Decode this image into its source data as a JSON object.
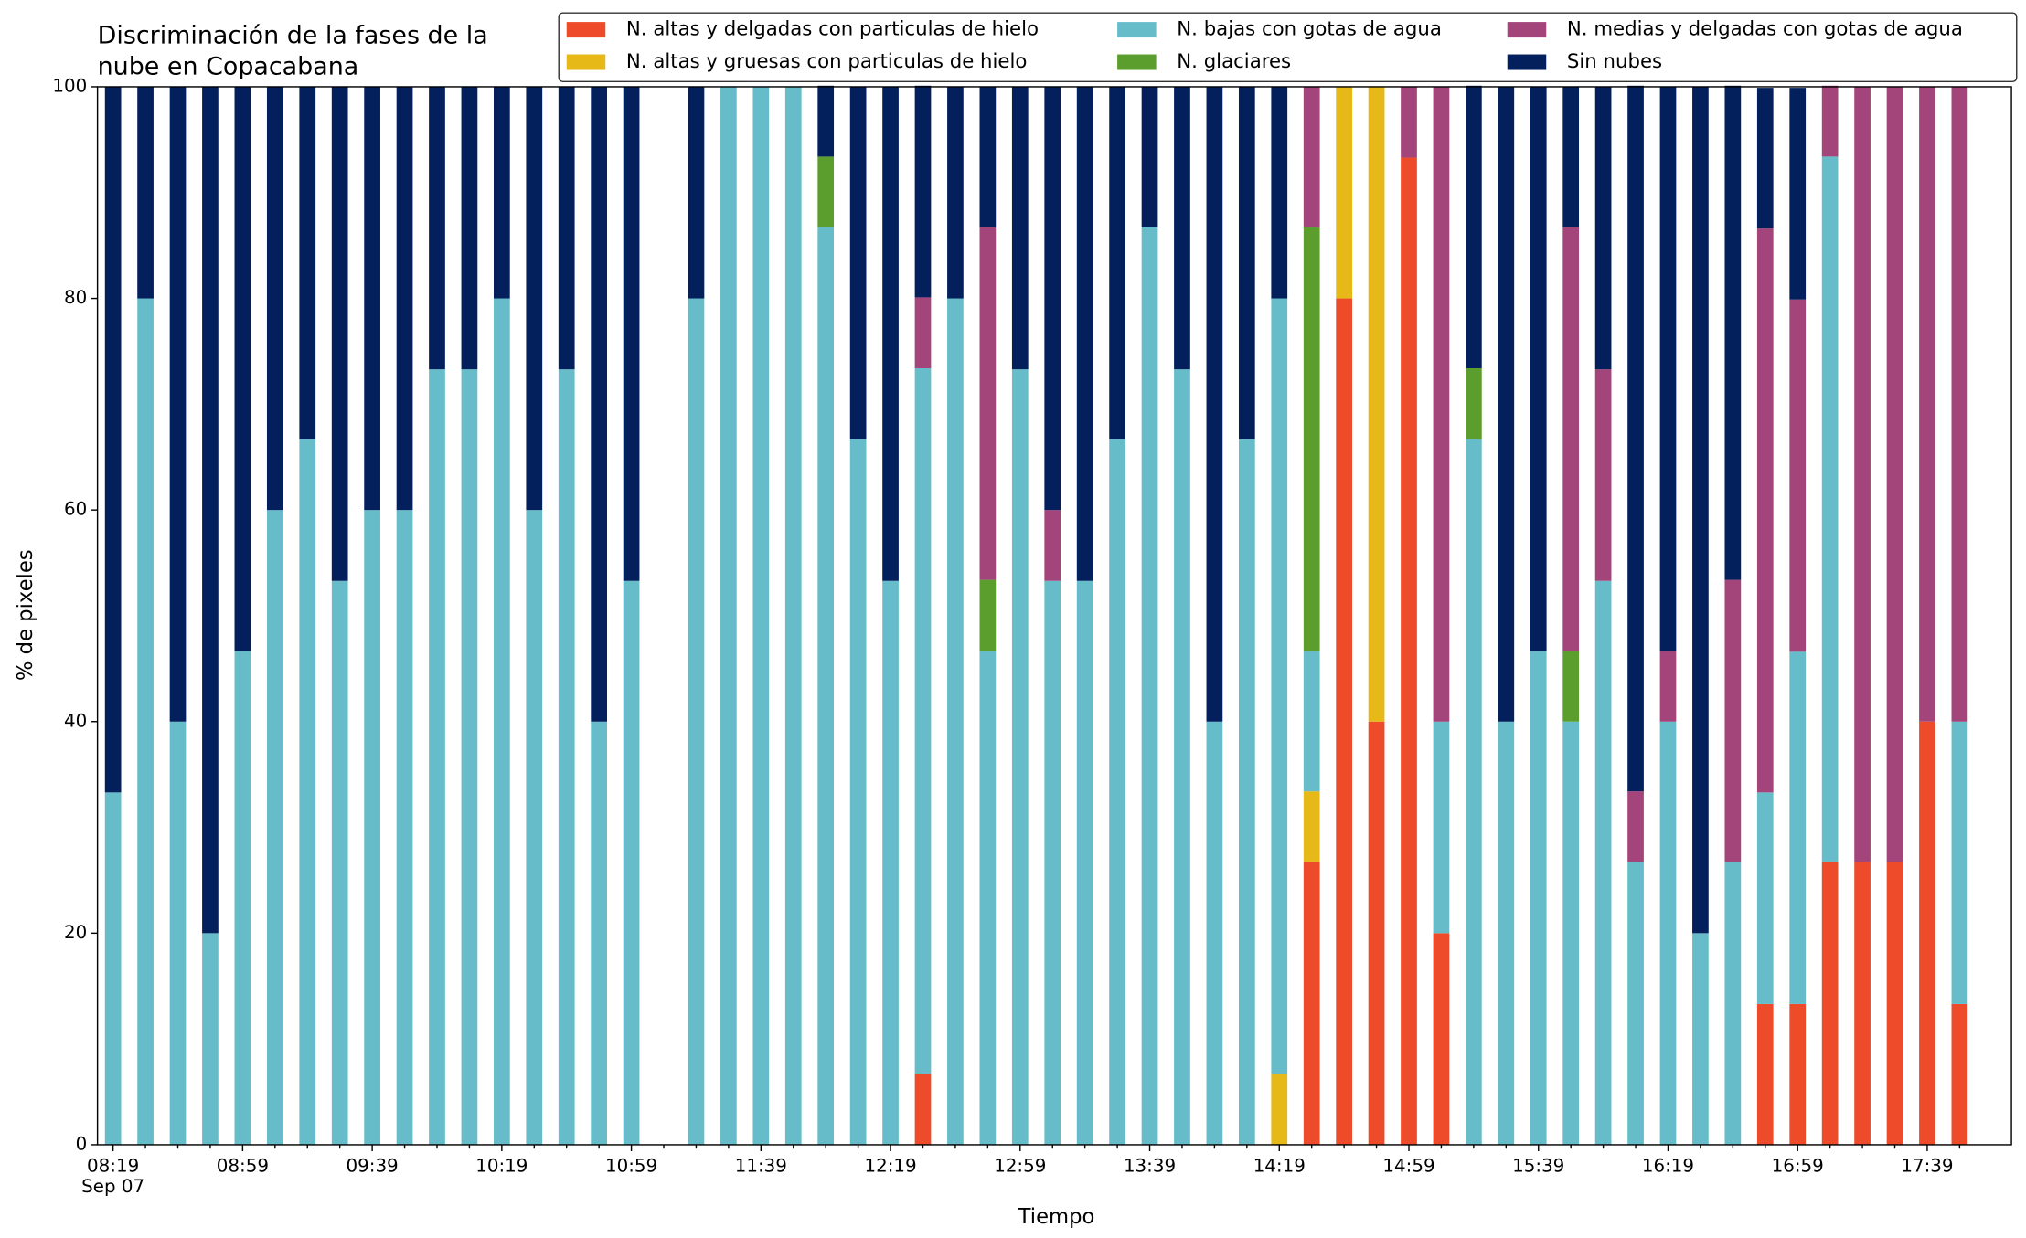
{
  "chart_data": {
    "type": "stacked_bar",
    "title": "Discriminación de la fases de la\nnube en Copacabana",
    "xlabel": "Tiempo",
    "ylabel": "% de pixeles",
    "date_label": "Sep 07",
    "categories": [
      "08:19",
      null,
      null,
      null,
      "08:59",
      null,
      null,
      null,
      "09:39",
      null,
      null,
      null,
      "10:19",
      null,
      null,
      null,
      "10:59",
      null,
      null,
      null,
      "11:39",
      null,
      null,
      null,
      "12:19",
      null,
      null,
      null,
      "12:59",
      null,
      null,
      null,
      "13:39",
      null,
      null,
      null,
      "14:19",
      null,
      null,
      null,
      "14:59",
      null,
      null,
      null,
      "15:39",
      null,
      null,
      null,
      "16:19",
      null,
      null,
      null,
      "16:59",
      null,
      null,
      null,
      "17:39",
      null
    ],
    "ylim": [
      0,
      100
    ],
    "yticks": [
      0,
      20,
      40,
      60,
      80,
      100
    ],
    "grid": false,
    "legend": "upper right",
    "series": [
      {
        "name": "N. altas y delgadas con particulas de hielo",
        "color": "#ee4b2b",
        "values": [
          0,
          0,
          0,
          0,
          0,
          0,
          0,
          0,
          0,
          0,
          0,
          0,
          0,
          0,
          0,
          0,
          0,
          null,
          0,
          0,
          0,
          0,
          0,
          0,
          0,
          6.7,
          0,
          0,
          0,
          0,
          0,
          0,
          0,
          0,
          0,
          0,
          0,
          26.7,
          80,
          40,
          93.3,
          20,
          0,
          0,
          0,
          0,
          0,
          0,
          0,
          0,
          0,
          13.3,
          13.3,
          26.7,
          26.7,
          26.7,
          40,
          13.3
        ]
      },
      {
        "name": "N. altas y gruesas con particulas de hielo",
        "color": "#e6b818",
        "values": [
          0,
          0,
          0,
          0,
          0,
          0,
          0,
          0,
          0,
          0,
          0,
          0,
          0,
          0,
          0,
          0,
          0,
          null,
          0,
          0,
          0,
          0,
          0,
          0,
          0,
          0,
          0,
          0,
          0,
          0,
          0,
          0,
          0,
          0,
          0,
          0,
          6.7,
          6.7,
          20,
          60,
          0,
          0,
          0,
          0,
          0,
          0,
          0,
          0,
          0,
          0,
          0,
          0,
          0,
          0,
          0,
          0,
          0,
          0
        ]
      },
      {
        "name": "N. bajas con gotas de agua",
        "color": "#66bdc9",
        "values": [
          33.3,
          80,
          40,
          20,
          46.7,
          60,
          66.7,
          53.3,
          60,
          60,
          73.3,
          73.3,
          80,
          60,
          73.3,
          40,
          53.3,
          null,
          80,
          100,
          100,
          100,
          86.7,
          66.7,
          53.3,
          66.7,
          80,
          46.7,
          73.3,
          53.3,
          53.3,
          66.7,
          86.7,
          73.3,
          40,
          66.7,
          73.3,
          13.3,
          0,
          0,
          0,
          20,
          66.7,
          40,
          46.7,
          40,
          53.3,
          26.7,
          40,
          20,
          26.7,
          20,
          33.3,
          66.7,
          0,
          0,
          0,
          26.7
        ]
      },
      {
        "name": "N. glaciares",
        "color": "#5c9e2e",
        "values": [
          0,
          0,
          0,
          0,
          0,
          0,
          0,
          0,
          0,
          0,
          0,
          0,
          0,
          0,
          0,
          0,
          0,
          null,
          0,
          0,
          0,
          0,
          6.7,
          0,
          0,
          0,
          0,
          6.7,
          0,
          0,
          0,
          0,
          0,
          0,
          0,
          0,
          0,
          40,
          0,
          0,
          0,
          0,
          6.7,
          0,
          0,
          6.7,
          0,
          0,
          0,
          0,
          0,
          0,
          0,
          0,
          0,
          0,
          0,
          0
        ]
      },
      {
        "name": "N. medias y delgadas con gotas de agua",
        "color": "#a3457a",
        "values": [
          0,
          0,
          0,
          0,
          0,
          0,
          0,
          0,
          0,
          0,
          0,
          0,
          0,
          0,
          0,
          0,
          0,
          null,
          0,
          0,
          0,
          0,
          0,
          0,
          0,
          6.7,
          0,
          33.3,
          0,
          6.7,
          0,
          0,
          0,
          0,
          0,
          0,
          0,
          13.3,
          0,
          0,
          6.7,
          60,
          0,
          0,
          0,
          40,
          20,
          6.7,
          6.7,
          0,
          26.7,
          53.3,
          33.3,
          6.7,
          73.3,
          73.3,
          60,
          60
        ]
      },
      {
        "name": "Sin nubes",
        "color": "#031f5c",
        "values": [
          66.7,
          20,
          60,
          80,
          53.3,
          40,
          33.3,
          46.7,
          40,
          40,
          26.7,
          26.7,
          20,
          40,
          26.7,
          60,
          46.7,
          null,
          20,
          0,
          0,
          0,
          6.7,
          33.3,
          46.7,
          20,
          20,
          13.3,
          26.7,
          40,
          46.7,
          33.3,
          13.3,
          26.7,
          60,
          33.3,
          20,
          0,
          0,
          0,
          0,
          0,
          26.7,
          60,
          53.3,
          13.3,
          26.7,
          66.7,
          53.3,
          80,
          46.7,
          13.3,
          20,
          0,
          0,
          0,
          0,
          0
        ]
      }
    ]
  }
}
